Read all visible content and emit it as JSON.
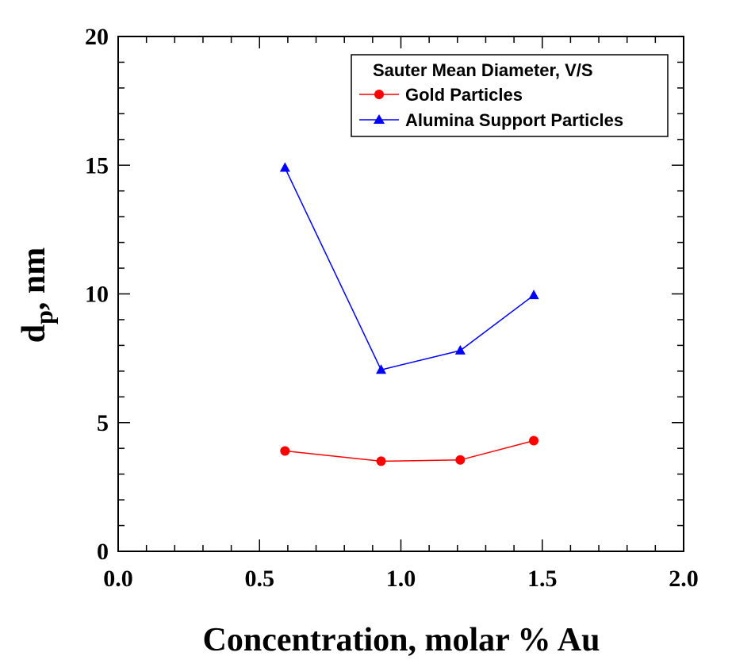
{
  "chart_data": {
    "type": "line",
    "xlabel": "Concentration, molar % Au",
    "ylabel": {
      "base": "d",
      "subscript": "p",
      "suffix": ", nm"
    },
    "xlim": [
      0.0,
      2.0
    ],
    "ylim": [
      0,
      20
    ],
    "x_ticks": [
      "0.0",
      "0.5",
      "1.0",
      "1.5",
      "2.0"
    ],
    "y_ticks": [
      "0",
      "5",
      "10",
      "15",
      "20"
    ],
    "grid": false,
    "legend": {
      "placement": "top-right",
      "title": "Sauter Mean Diameter, V/S"
    },
    "series": [
      {
        "name": "Gold Particles",
        "marker": "circle",
        "color": "#ff0000",
        "x": [
          0.59,
          0.93,
          1.21,
          1.47
        ],
        "y": [
          3.9,
          3.5,
          3.55,
          4.3
        ]
      },
      {
        "name": "Alumina Support Particles",
        "marker": "triangle",
        "color": "#0000ff",
        "x": [
          0.59,
          0.93,
          1.21,
          1.47
        ],
        "y": [
          14.9,
          7.05,
          7.8,
          9.95
        ]
      }
    ]
  }
}
